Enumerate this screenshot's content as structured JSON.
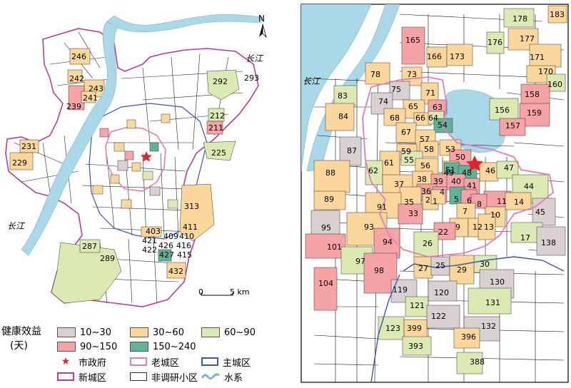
{
  "colors": {
    "c10_30": "#d9d1d1",
    "c30_60": "#fcd79b",
    "c60_90": "#dbeab2",
    "c90_150": "#f6a3a5",
    "c150_240": "#5fb398",
    "river": "#a9d8e8",
    "new_city": "#b63e9b",
    "old_city": "#e67bb8",
    "main_city": "#3c57a8",
    "star": "#e8202a"
  },
  "overview": {
    "north_label": "N",
    "river_label_1": "长江",
    "river_label_2": "长江",
    "scale_zero": "0",
    "scale_label": "5 km",
    "labels": [
      "246",
      "242",
      "243",
      "241",
      "239",
      "231",
      "229",
      "292",
      "293",
      "212",
      "211",
      "225",
      "313",
      "411",
      "403",
      "409",
      "410",
      "426",
      "416",
      "421",
      "422",
      "427",
      "415",
      "432",
      "287",
      "289"
    ]
  },
  "detail": {
    "river_label": "长江",
    "labels": [
      "183",
      "178",
      "176",
      "177",
      "165",
      "166",
      "173",
      "171",
      "170",
      "160",
      "78",
      "73",
      "75",
      "83",
      "74",
      "71",
      "158",
      "65",
      "63",
      "156",
      "159",
      "84",
      "68",
      "66",
      "64",
      "157",
      "67",
      "54",
      "57",
      "87",
      "53",
      "58",
      "59",
      "55",
      "50",
      "61",
      "62",
      "56",
      "49",
      "51",
      "48",
      "46",
      "47",
      "88",
      "37",
      "38",
      "39",
      "40",
      "41",
      "44",
      "89",
      "36",
      "11",
      "14",
      "4",
      "2",
      "1",
      "5",
      "6",
      "8",
      "35",
      "7",
      "91",
      "10",
      "45",
      "33",
      "95",
      "9",
      "22",
      "12",
      "13",
      "17",
      "93",
      "138",
      "101",
      "94",
      "26",
      "30",
      "97",
      "27",
      "25",
      "29",
      "98",
      "130",
      "119",
      "120",
      "104",
      "121",
      "131",
      "122",
      "132",
      "123",
      "399",
      "396",
      "393",
      "388"
    ]
  },
  "legend": {
    "title_line1": "健康效益",
    "title_line2": "(天)",
    "items": [
      {
        "key": "c10_30",
        "label": "10~30"
      },
      {
        "key": "c30_60",
        "label": "30~60"
      },
      {
        "key": "c60_90",
        "label": "60~90"
      },
      {
        "key": "c90_150",
        "label": "90~150"
      },
      {
        "key": "c150_240",
        "label": "150~240"
      }
    ],
    "city_hall": "市政府",
    "old_city": "老城区",
    "main_city": "主城区",
    "new_city": "新城区",
    "non_survey": "非调研小区",
    "water": "水系"
  }
}
